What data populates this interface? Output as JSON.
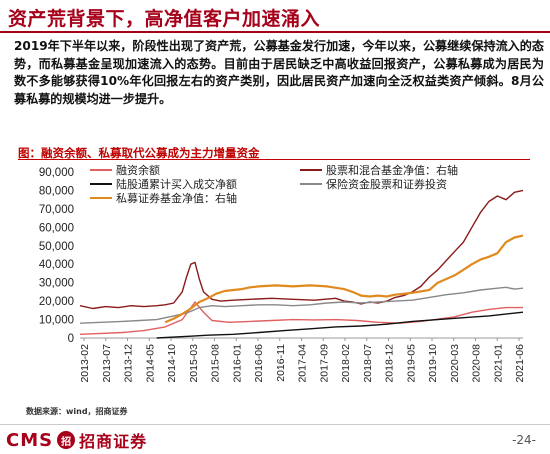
{
  "header": {
    "title": "资产荒背景下，高净值客户加速涌入"
  },
  "body": {
    "paragraph": "2019年下半年以来，阶段性出现了资产荒，公募基金发行加速，今年以来，公募继续保持流入的态势，而私募基金呈现加速流入的态势。目前由于居民缺乏中高收益回报资产，公募私募成为居民为数不多能够获得10%年化回报左右的资产类别，因此居民资产加速向全泛权益类资产倾斜。8月公募私募的规模均进一步提升。"
  },
  "chart_title": "图：融资余额、私募取代公募成为主力增量资金",
  "source": "数据来源：wind，招商证券",
  "footer": {
    "logo_text": "CMS",
    "logo_mark": "招",
    "logo_cn": "招商证券",
    "page": "-24-"
  },
  "chart_data": {
    "type": "line",
    "ylim": [
      0,
      90000
    ],
    "y_ticks": [
      "0",
      "10,000",
      "20,000",
      "30,000",
      "40,000",
      "50,000",
      "60,000",
      "70,000",
      "80,000",
      "90,000"
    ],
    "x_tick_labels": [
      "2013-02",
      "2013-07",
      "2013-12",
      "2014-05",
      "2014-10",
      "2015-03",
      "2015-08",
      "2016-01",
      "2016-06",
      "2016-11",
      "2017-04",
      "2017-09",
      "2018-02",
      "2018-07",
      "2018-12",
      "2019-05",
      "2019-10",
      "2020-03",
      "2020-08",
      "2021-01",
      "2021-06"
    ],
    "x_range": [
      0,
      104
    ],
    "legend": [
      "融资余额",
      "股票和混合基金净值：右轴",
      "陆股通累计买入成交净额",
      "保险资金股票和证券投资",
      "私募证券基金净值：右轴"
    ],
    "series": [
      {
        "name": "融资余额",
        "color": "#e06060",
        "points": [
          [
            0,
            2000
          ],
          [
            5,
            2500
          ],
          [
            10,
            3000
          ],
          [
            15,
            4000
          ],
          [
            20,
            6000
          ],
          [
            24,
            10000
          ],
          [
            27,
            19500
          ],
          [
            29,
            14000
          ],
          [
            31,
            9500
          ],
          [
            35,
            8500
          ],
          [
            40,
            9000
          ],
          [
            45,
            9500
          ],
          [
            50,
            10000
          ],
          [
            55,
            9800
          ],
          [
            60,
            10000
          ],
          [
            65,
            9500
          ],
          [
            70,
            8500
          ],
          [
            75,
            8000
          ],
          [
            80,
            9000
          ],
          [
            85,
            10500
          ],
          [
            88,
            11500
          ],
          [
            92,
            14000
          ],
          [
            96,
            15500
          ],
          [
            100,
            16500
          ],
          [
            104,
            16500
          ]
        ]
      },
      {
        "name": "股票和混合基金净值：右轴",
        "color": "#8b1a1a",
        "points": [
          [
            0,
            17500
          ],
          [
            3,
            16000
          ],
          [
            6,
            17000
          ],
          [
            9,
            16500
          ],
          [
            12,
            17500
          ],
          [
            15,
            17000
          ],
          [
            18,
            17500
          ],
          [
            20,
            18000
          ],
          [
            22,
            19000
          ],
          [
            24,
            25000
          ],
          [
            25,
            33000
          ],
          [
            26,
            40000
          ],
          [
            27,
            41000
          ],
          [
            28,
            32000
          ],
          [
            29,
            25000
          ],
          [
            31,
            21000
          ],
          [
            33,
            20000
          ],
          [
            36,
            20500
          ],
          [
            40,
            21000
          ],
          [
            45,
            21500
          ],
          [
            50,
            21000
          ],
          [
            55,
            20500
          ],
          [
            60,
            21500
          ],
          [
            62,
            20000
          ],
          [
            64,
            19500
          ],
          [
            66,
            18500
          ],
          [
            68,
            19500
          ],
          [
            70,
            19000
          ],
          [
            72,
            20000
          ],
          [
            74,
            22000
          ],
          [
            76,
            23000
          ],
          [
            78,
            25000
          ],
          [
            80,
            28000
          ],
          [
            82,
            33000
          ],
          [
            84,
            37000
          ],
          [
            86,
            42000
          ],
          [
            88,
            47000
          ],
          [
            90,
            52000
          ],
          [
            92,
            60000
          ],
          [
            94,
            68000
          ],
          [
            96,
            74000
          ],
          [
            98,
            77000
          ],
          [
            100,
            75000
          ],
          [
            102,
            79000
          ],
          [
            104,
            80000
          ]
        ]
      },
      {
        "name": "陆股通累计买入成交净额",
        "color": "#111111",
        "points": [
          [
            18,
            0
          ],
          [
            22,
            500
          ],
          [
            26,
            1000
          ],
          [
            30,
            1500
          ],
          [
            36,
            2000
          ],
          [
            42,
            3000
          ],
          [
            48,
            4000
          ],
          [
            54,
            5000
          ],
          [
            60,
            6000
          ],
          [
            66,
            6500
          ],
          [
            72,
            7500
          ],
          [
            78,
            9000
          ],
          [
            84,
            10000
          ],
          [
            90,
            11000
          ],
          [
            96,
            12000
          ],
          [
            104,
            14000
          ]
        ]
      },
      {
        "name": "保险资金股票和证券投资",
        "color": "#888888",
        "points": [
          [
            0,
            8000
          ],
          [
            5,
            8500
          ],
          [
            10,
            9000
          ],
          [
            14,
            9500
          ],
          [
            18,
            10000
          ],
          [
            22,
            12000
          ],
          [
            25,
            13500
          ],
          [
            28,
            16500
          ],
          [
            31,
            17500
          ],
          [
            34,
            17000
          ],
          [
            38,
            17500
          ],
          [
            42,
            18000
          ],
          [
            46,
            18000
          ],
          [
            50,
            17500
          ],
          [
            54,
            18000
          ],
          [
            58,
            19000
          ],
          [
            62,
            19500
          ],
          [
            66,
            19000
          ],
          [
            70,
            19500
          ],
          [
            74,
            20000
          ],
          [
            78,
            20500
          ],
          [
            82,
            22000
          ],
          [
            86,
            23500
          ],
          [
            90,
            24500
          ],
          [
            94,
            26000
          ],
          [
            98,
            27000
          ],
          [
            100,
            27500
          ],
          [
            102,
            26500
          ],
          [
            104,
            27000
          ]
        ]
      },
      {
        "name": "私募证券基金净值：右轴",
        "color": "#e08a1e",
        "points": [
          [
            20,
            8500
          ],
          [
            22,
            10500
          ],
          [
            24,
            13000
          ],
          [
            26,
            16000
          ],
          [
            28,
            19500
          ],
          [
            30,
            21500
          ],
          [
            32,
            24000
          ],
          [
            34,
            25500
          ],
          [
            36,
            26000
          ],
          [
            38,
            26500
          ],
          [
            40,
            27500
          ],
          [
            42,
            28000
          ],
          [
            46,
            28500
          ],
          [
            50,
            28000
          ],
          [
            54,
            28500
          ],
          [
            58,
            28000
          ],
          [
            62,
            26500
          ],
          [
            64,
            25000
          ],
          [
            66,
            23000
          ],
          [
            68,
            22500
          ],
          [
            70,
            23000
          ],
          [
            72,
            22500
          ],
          [
            74,
            23500
          ],
          [
            78,
            24500
          ],
          [
            82,
            26000
          ],
          [
            84,
            30000
          ],
          [
            86,
            32000
          ],
          [
            88,
            34000
          ],
          [
            90,
            37000
          ],
          [
            92,
            40000
          ],
          [
            94,
            42500
          ],
          [
            96,
            44000
          ],
          [
            98,
            46000
          ],
          [
            100,
            52000
          ],
          [
            102,
            54500
          ],
          [
            104,
            55500
          ]
        ]
      }
    ]
  }
}
